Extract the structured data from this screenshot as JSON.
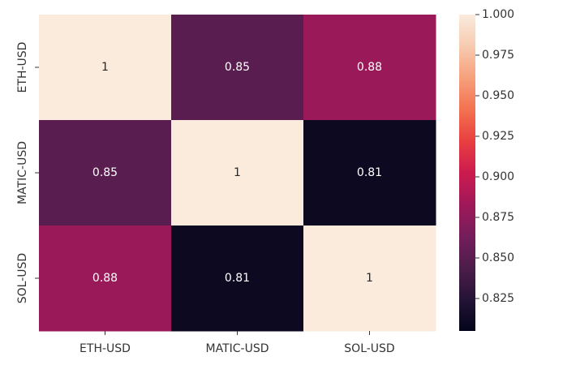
{
  "chart_data": {
    "type": "heatmap",
    "rows": [
      "ETH-USD",
      "MATIC-USD",
      "SOL-USD"
    ],
    "columns": [
      "ETH-USD",
      "MATIC-USD",
      "SOL-USD"
    ],
    "values": [
      [
        1,
        0.85,
        0.88
      ],
      [
        0.85,
        1,
        0.81
      ],
      [
        0.88,
        0.81,
        1
      ]
    ],
    "annotations": [
      [
        "1",
        "0.85",
        "0.88"
      ],
      [
        "0.85",
        "1",
        "0.81"
      ],
      [
        "0.88",
        "0.81",
        "1"
      ]
    ],
    "colorbar": {
      "min": 0.805,
      "max": 1.0,
      "ticks": [
        1.0,
        0.975,
        0.95,
        0.925,
        0.9,
        0.875,
        0.85,
        0.825
      ],
      "tick_labels": [
        "1.000",
        "0.975",
        "0.950",
        "0.925",
        "0.900",
        "0.875",
        "0.850",
        "0.825"
      ],
      "colormap": "rocket"
    },
    "title": "",
    "xlabel": "",
    "ylabel": ""
  }
}
